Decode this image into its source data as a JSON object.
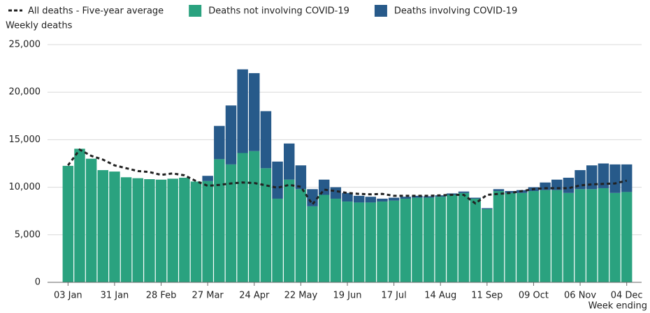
{
  "chart_data": {
    "type": "bar",
    "stacked": true,
    "y_axis_label": "Weekly deaths",
    "x_axis_label": "Week ending",
    "categories": [
      "03 Jan",
      null,
      null,
      null,
      "31 Jan",
      null,
      null,
      null,
      "28 Feb",
      null,
      null,
      null,
      "27 Mar",
      null,
      null,
      null,
      "24 Apr",
      null,
      null,
      null,
      "22 May",
      null,
      null,
      null,
      "19 Jun",
      null,
      null,
      null,
      "17 Jul",
      null,
      null,
      null,
      "14 Aug",
      null,
      null,
      null,
      "11 Sep",
      null,
      null,
      null,
      "09 Oct",
      null,
      null,
      null,
      "06 Nov",
      null,
      null,
      null,
      "04 Dec"
    ],
    "series": [
      {
        "name": "All deaths - Five-year average",
        "type": "line",
        "dashed": true,
        "color": "#222222",
        "values": [
          12300,
          13950,
          13300,
          12900,
          12300,
          12000,
          11700,
          11600,
          11300,
          11450,
          11250,
          10650,
          10150,
          10250,
          10400,
          10500,
          10450,
          10200,
          9950,
          10250,
          10050,
          8200,
          9750,
          9600,
          9400,
          9300,
          9250,
          9300,
          9100,
          9100,
          9100,
          9100,
          9150,
          9200,
          9200,
          8300,
          9200,
          9300,
          9400,
          9600,
          9800,
          9900,
          9900,
          9900,
          10200,
          10300,
          10350,
          10400,
          10700
        ]
      },
      {
        "name": "Deaths not involving COVID-19",
        "type": "bar",
        "color": "#2aa27f",
        "values": [
          12250,
          14050,
          13000,
          11800,
          11650,
          11050,
          10950,
          10850,
          10800,
          10900,
          11000,
          10600,
          10650,
          12950,
          12400,
          13600,
          13800,
          12000,
          8800,
          10800,
          9800,
          8000,
          9200,
          8800,
          8500,
          8400,
          8400,
          8500,
          8600,
          8800,
          8900,
          8900,
          9000,
          9200,
          9400,
          8800,
          7700,
          9600,
          9400,
          9400,
          9600,
          9700,
          9700,
          9400,
          9800,
          9800,
          9900,
          9400,
          9500
        ]
      },
      {
        "name": "Deaths involving COVID-19",
        "type": "bar",
        "color": "#275a8a",
        "values": [
          0,
          0,
          0,
          0,
          0,
          0,
          0,
          0,
          0,
          0,
          0,
          0,
          550,
          3500,
          6200,
          8800,
          8200,
          6000,
          3900,
          3800,
          2500,
          1800,
          1600,
          1200,
          900,
          700,
          600,
          300,
          300,
          200,
          200,
          150,
          150,
          150,
          150,
          100,
          100,
          200,
          200,
          300,
          400,
          800,
          1100,
          1600,
          2000,
          2500,
          2600,
          3000,
          2900
        ]
      }
    ],
    "ylim": [
      0,
      25000
    ],
    "yticks": [
      0,
      {
        "value": 5000,
        "label": "5,000"
      },
      {
        "value": 10000,
        "label": "10,000"
      },
      {
        "value": 15000,
        "label": "15,000"
      },
      {
        "value": 20000,
        "label": "20,000"
      },
      {
        "value": 25000,
        "label": "25,000"
      }
    ],
    "grid": true
  }
}
